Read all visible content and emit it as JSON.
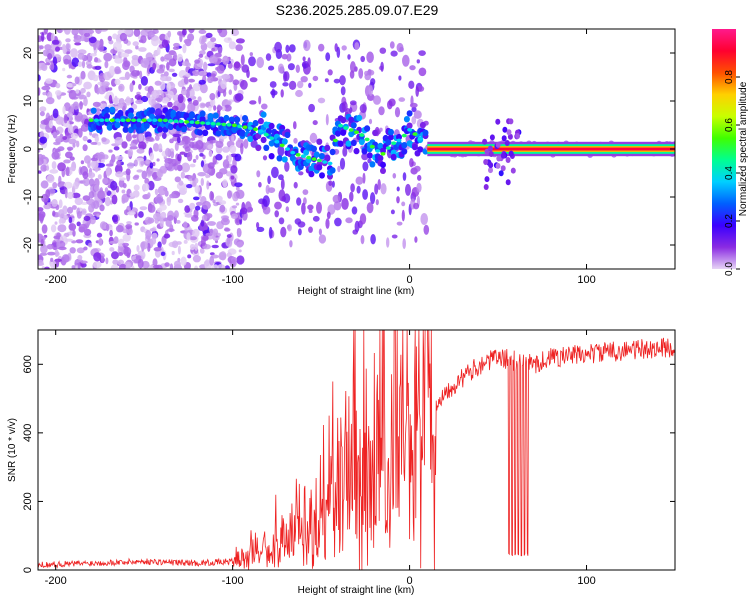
{
  "title": "S236.2025.285.09.07.E29",
  "chart_data": [
    {
      "type": "heatmap",
      "name": "spectrogram",
      "xlabel": "Height of straight line (km)",
      "ylabel": "Frequency (Hz)",
      "xlim": [
        -210,
        150
      ],
      "ylim": [
        -25,
        25
      ],
      "xticks": [
        -200,
        -100,
        0,
        100
      ],
      "yticks": [
        -20,
        -10,
        0,
        10,
        20
      ],
      "colorbar": {
        "label": "Normalized spectral amplitude",
        "range": [
          0.0,
          1.0
        ],
        "ticks": [
          0.0,
          0.2,
          0.4,
          0.6,
          0.8
        ],
        "colors": [
          "#e6d4f5",
          "#8a2be2",
          "#3a00ff",
          "#0060ff",
          "#00d0ff",
          "#00ff90",
          "#40ff00",
          "#c8ff00",
          "#ffd000",
          "#ff5000",
          "#ff0030",
          "#ff1a8c"
        ]
      },
      "ridge": {
        "x": [
          -180,
          -160,
          -140,
          -120,
          -100,
          -85,
          -75,
          -65,
          -55,
          -45,
          -40,
          -30,
          -25,
          -20,
          -15,
          -10,
          -5,
          0,
          5,
          10,
          20,
          60,
          100,
          150
        ],
        "y": [
          6,
          6,
          6,
          5.5,
          5,
          4,
          1.5,
          -1,
          -2,
          -3,
          5,
          3.5,
          2.5,
          0,
          -1,
          1,
          2,
          4,
          2.5,
          0.5,
          0,
          0,
          0,
          0
        ]
      }
    },
    {
      "type": "line",
      "name": "snr",
      "xlabel": "Height of straight line (km)",
      "ylabel": "SNR (10 * v/v)",
      "xlim": [
        -210,
        150
      ],
      "ylim": [
        0,
        700
      ],
      "xticks": [
        -200,
        -100,
        0,
        100
      ],
      "yticks": [
        0,
        200,
        400,
        600
      ],
      "color": "#ee2222",
      "envelope": {
        "x": [
          -210,
          -180,
          -150,
          -120,
          -100,
          -90,
          -80,
          -70,
          -60,
          -50,
          -40,
          -30,
          -20,
          -10,
          0,
          10,
          20,
          30,
          40,
          50,
          60,
          70,
          80,
          100,
          120,
          150
        ],
        "y": [
          15,
          20,
          25,
          20,
          25,
          40,
          70,
          80,
          100,
          140,
          200,
          250,
          280,
          330,
          380,
          450,
          520,
          560,
          600,
          620,
          610,
          600,
          620,
          630,
          640,
          650
        ]
      },
      "dropouts": {
        "x_range": [
          55,
          68
        ],
        "y_min": 40
      }
    }
  ]
}
